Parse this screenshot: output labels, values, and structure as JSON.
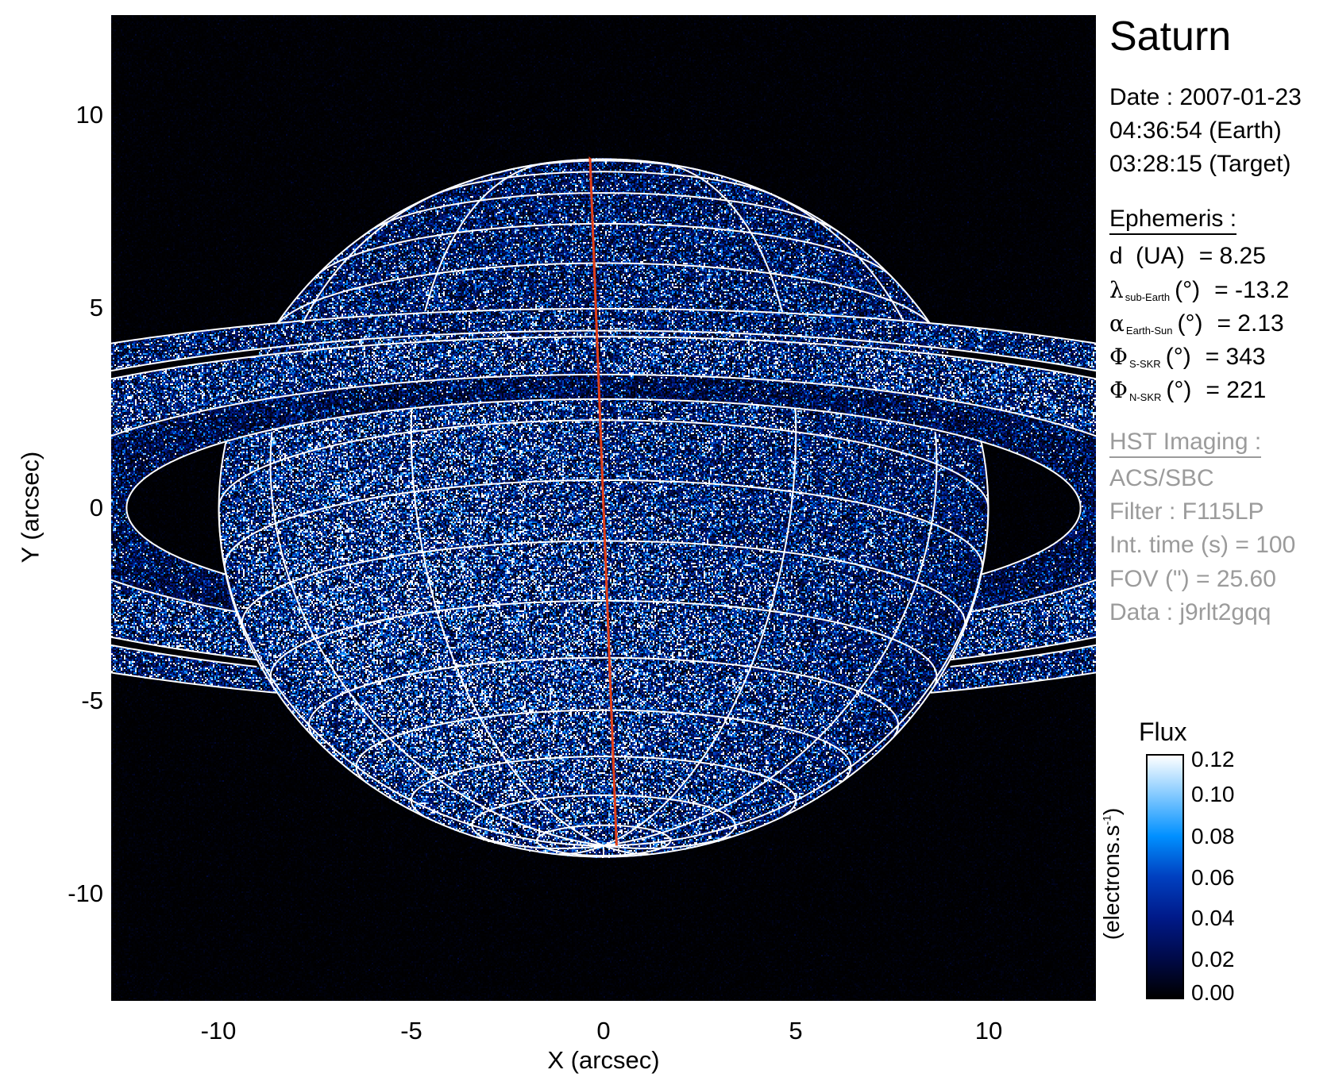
{
  "chart_data": {
    "type": "heatmap",
    "title": "Saturn",
    "xlabel": "X (arcsec)",
    "ylabel": "Y (arcsec)",
    "xlim": [
      -12.8,
      12.8
    ],
    "ylim": [
      -12.8,
      12.8
    ],
    "xticks": [
      "-10",
      "-5",
      "0",
      "5",
      "10"
    ],
    "yticks": [
      "10",
      "5",
      "0",
      "-5",
      "-10"
    ],
    "grid": true,
    "overlay_colors": {
      "grid": "#ffffff",
      "central_meridian": "#e0401a"
    },
    "colorbar": {
      "title": "Flux",
      "label": "(electrons.s",
      "label_sup": "-1",
      "label_end": ")",
      "range": [
        0.0,
        0.12
      ],
      "ticks": [
        "0.12",
        "0.10",
        "0.08",
        "0.06",
        "0.04",
        "0.02",
        "0.00"
      ],
      "colormap": [
        "#000000",
        "#000a4a",
        "#001a8a",
        "#0040c0",
        "#0090ff",
        "#80c8ff",
        "#ffffff"
      ]
    }
  },
  "info": {
    "title": "Saturn",
    "date": "Date : 2007-01-23",
    "time_earth": "04:36:54 (Earth)",
    "time_target": "03:28:15 (Target)",
    "ephemeris_heading": "Ephemeris :",
    "ephemeris": [
      {
        "symbol": "d",
        "sub": "",
        "unit": " (UA)",
        "value": "= 8.25"
      },
      {
        "symbol": "λ",
        "sub": "sub-Earth",
        "unit": "(°)",
        "value": "= -13.2"
      },
      {
        "symbol": "α",
        "sub": "Earth-Sun",
        "unit": "(°)",
        "value": "= 2.13"
      },
      {
        "symbol": "Φ",
        "sub": "S-SKR",
        "unit": "(°)",
        "value": "= 343"
      },
      {
        "symbol": "Φ",
        "sub": "N-SKR",
        "unit": "(°)",
        "value": "= 221"
      }
    ],
    "imaging_heading": "HST Imaging :",
    "imaging": [
      "ACS/SBC",
      "Filter : F115LP",
      "Int. time (s) = 100",
      "FOV (\") = 25.60",
      "Data : j9rlt2gqq"
    ]
  }
}
